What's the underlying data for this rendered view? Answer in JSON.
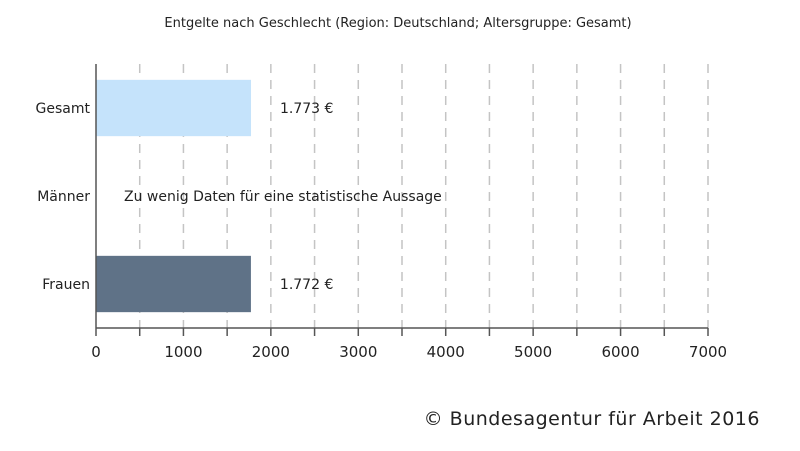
{
  "chart_data": {
    "type": "bar",
    "orientation": "horizontal",
    "title": "Entgelte nach Geschlecht (Region: Deutschland; Altersgruppe: Gesamt)",
    "categories": [
      "Gesamt",
      "Männer",
      "Frauen"
    ],
    "values": [
      1773,
      null,
      1772
    ],
    "data_labels": [
      "1.773 €",
      "",
      "1.772 €"
    ],
    "annotations": [
      "",
      "Zu wenig Daten für eine statistische Aussage",
      ""
    ],
    "colors": [
      "#c5e3fb",
      null,
      "#5f7287"
    ],
    "xlim": [
      0,
      7000
    ],
    "x_ticks": [
      0,
      1000,
      2000,
      3000,
      4000,
      5000,
      6000,
      7000
    ],
    "grid": "vertical dashed",
    "xlabel": "",
    "ylabel": ""
  },
  "credit": "© Bundesagentur für Arbeit 2016"
}
